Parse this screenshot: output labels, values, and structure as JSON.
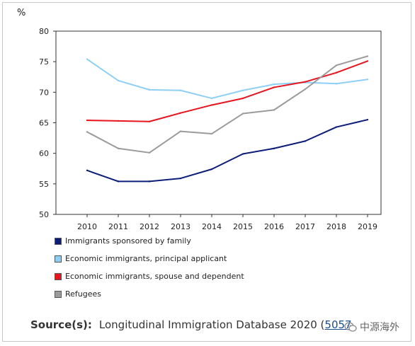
{
  "chart_data": {
    "type": "line",
    "ylabel": "%",
    "ylim": [
      50,
      80
    ],
    "yticks": [
      50,
      55,
      60,
      65,
      70,
      75,
      80
    ],
    "x": [
      "2010",
      "2011",
      "2012",
      "2013",
      "2014",
      "2015",
      "2016",
      "2017",
      "2018",
      "2019"
    ],
    "grid": false,
    "legend_position": "bottom",
    "series": [
      {
        "name": "Immigrants sponsored by family",
        "color": "#0b1d78",
        "values": [
          57.2,
          55.4,
          55.4,
          55.9,
          57.4,
          59.9,
          60.8,
          62.0,
          64.3,
          65.5
        ]
      },
      {
        "name": "Economic immigrants, principal applicant",
        "color": "#8ecff5",
        "values": [
          75.4,
          71.9,
          70.4,
          70.3,
          69.0,
          70.3,
          71.3,
          71.6,
          71.4,
          72.1
        ]
      },
      {
        "name": "Economic immigrants, spouse and dependent",
        "color": "#e8141e",
        "values": [
          65.4,
          65.3,
          65.2,
          66.6,
          67.9,
          69.0,
          70.8,
          71.7,
          73.2,
          75.1
        ]
      },
      {
        "name": "Refugees",
        "color": "#9b9b9b",
        "values": [
          63.5,
          60.8,
          60.1,
          63.6,
          63.2,
          66.5,
          67.1,
          70.5,
          74.4,
          75.9
        ]
      }
    ]
  },
  "source": {
    "label": "Source(s):",
    "text": "Longitudinal Immigration Database 2020 (",
    "link": "5057"
  },
  "watermark": {
    "text": "中源海外",
    "icon": "wechat-icon"
  }
}
